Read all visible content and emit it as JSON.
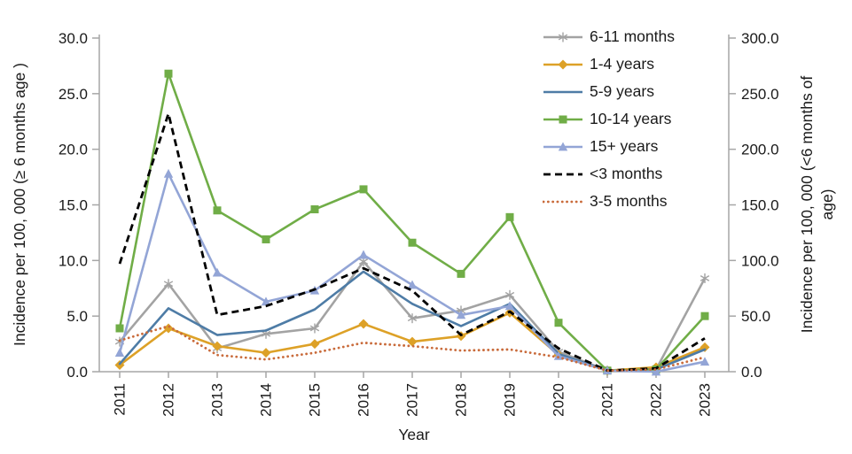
{
  "chart_data": {
    "type": "line",
    "title": "",
    "xlabel": "Year",
    "ylabel_left": "Incidence per 100, 000 (≥ 6 months age )",
    "ylabel_right": [
      "Incidence per 100, 000 (<6 months of",
      "age)"
    ],
    "x_categories": [
      "2011",
      "2012",
      "2013",
      "2014",
      "2015",
      "2016",
      "2017",
      "2018",
      "2019",
      "2020",
      "2021",
      "2022",
      "2023"
    ],
    "left_axis": {
      "min": 0,
      "max": 30,
      "step": 5,
      "tick_labels": [
        "0.0",
        "5.0",
        "10.0",
        "15.0",
        "20.0",
        "25.0",
        "30.0"
      ]
    },
    "right_axis": {
      "min": 0,
      "max": 300,
      "step": 50,
      "tick_labels": [
        "0.0",
        "50.0",
        "100.0",
        "150.0",
        "200.0",
        "250.0",
        "300.0"
      ]
    },
    "grid": false,
    "legend_position": "top-right-inside",
    "axis_color": "#a6a6a6",
    "series": [
      {
        "name": "6-11 months",
        "axis": "left",
        "color": "#a3a3a3",
        "marker": "asterisk",
        "line": "solid",
        "values": [
          2.7,
          7.9,
          2.1,
          3.4,
          3.9,
          9.9,
          4.8,
          5.5,
          6.9,
          1.8,
          0.1,
          0.2,
          8.4
        ]
      },
      {
        "name": "1-4 years",
        "axis": "left",
        "color": "#dda127",
        "marker": "diamond",
        "line": "solid",
        "values": [
          0.6,
          3.9,
          2.3,
          1.7,
          2.5,
          4.3,
          2.7,
          3.2,
          5.3,
          1.5,
          0.1,
          0.4,
          2.2
        ]
      },
      {
        "name": "5-9 years",
        "axis": "left",
        "color": "#4e7ca6",
        "marker": "none",
        "line": "solid",
        "values": [
          0.7,
          5.7,
          3.3,
          3.7,
          5.6,
          9.0,
          6.1,
          4.1,
          6.1,
          1.6,
          0.1,
          0.2,
          2.0
        ]
      },
      {
        "name": "10-14 years",
        "axis": "left",
        "color": "#70ad47",
        "marker": "square",
        "line": "solid",
        "values": [
          3.9,
          26.8,
          14.5,
          11.9,
          14.6,
          16.4,
          11.6,
          8.8,
          13.9,
          4.4,
          0.1,
          0.2,
          5.0
        ]
      },
      {
        "name": "15+ years",
        "axis": "left",
        "color": "#93a5d6",
        "marker": "triangle",
        "line": "solid",
        "values": [
          1.7,
          17.8,
          8.9,
          6.3,
          7.3,
          10.5,
          7.8,
          5.1,
          5.9,
          1.4,
          0.1,
          0.0,
          0.9
        ]
      },
      {
        "name": "<3 months",
        "axis": "right",
        "color": "#000000",
        "marker": "none",
        "line": "dashed",
        "values": [
          97,
          232,
          51,
          59,
          74,
          93,
          73,
          33,
          54,
          21,
          1,
          3,
          30
        ]
      },
      {
        "name": "3-5 months",
        "axis": "right",
        "color": "#c96b3b",
        "marker": "none",
        "line": "dotted",
        "values": [
          28,
          41,
          15,
          11,
          17,
          26,
          23,
          19,
          20,
          13,
          1,
          2,
          13
        ]
      }
    ]
  }
}
